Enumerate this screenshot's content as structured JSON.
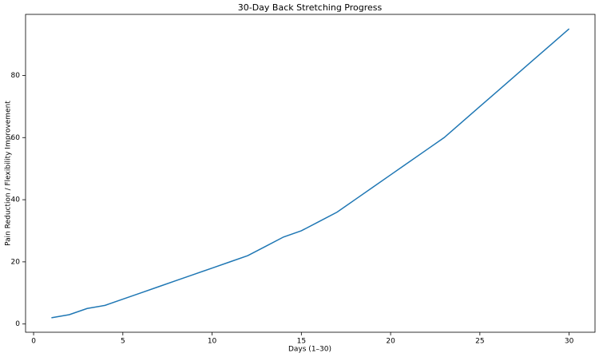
{
  "chart_data": {
    "type": "line",
    "title": "30-Day Back Stretching Progress",
    "x_label": "Days (1–30)",
    "y_label": "Pain Reduction / Flexibility Improvement",
    "x": [
      1,
      2,
      3,
      4,
      5,
      6,
      7,
      8,
      9,
      10,
      11,
      12,
      13,
      14,
      15,
      16,
      17,
      18,
      19,
      20,
      21,
      22,
      23,
      24,
      25,
      26,
      27,
      28,
      29,
      30
    ],
    "series": [
      {
        "color": "#1f77b4",
        "values": [
          2,
          3,
          5,
          6,
          8,
          10,
          12,
          14,
          16,
          18,
          20,
          22,
          25,
          28,
          30,
          33,
          36,
          40,
          44,
          48,
          52,
          56,
          60,
          65,
          70,
          75,
          80,
          85,
          90,
          95
        ]
      }
    ],
    "xlim": [
      -0.45,
      31.45
    ],
    "ylim": [
      -2.65,
      99.65
    ],
    "xticks": [
      0,
      5,
      10,
      15,
      20,
      25,
      30
    ],
    "yticks": [
      0,
      20,
      40,
      60,
      80
    ],
    "grid": false
  }
}
